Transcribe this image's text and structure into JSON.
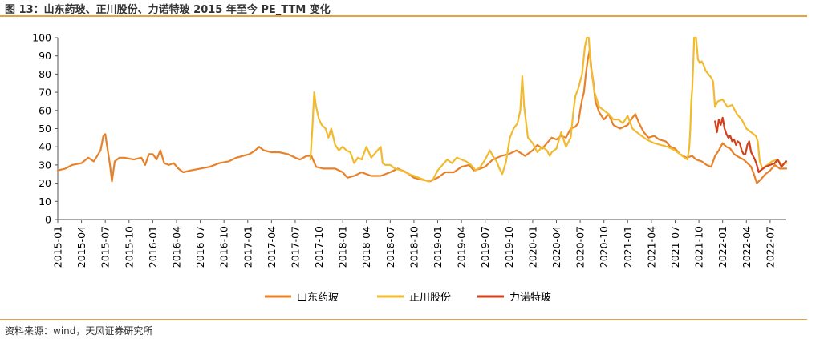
{
  "header": {
    "title": "图 13：山东药玻、正川股份、力诺特玻 2015 年至今 PE_TTM 变化"
  },
  "footer": {
    "source": "资料来源：wind，天风证券研究所"
  },
  "chart_data": {
    "type": "line",
    "title": "山东药玻、正川股份、力诺特玻 2015 年至今 PE_TTM 变化",
    "xlabel": "",
    "ylabel": "",
    "ylim": [
      0,
      100
    ],
    "yticks": [
      "0",
      "10",
      "20",
      "30",
      "40",
      "50",
      "60",
      "70",
      "80",
      "90",
      "100"
    ],
    "xlim": [
      2015.0,
      2022.67
    ],
    "xticks": [
      "2015-01",
      "2015-04",
      "2015-07",
      "2015-10",
      "2016-01",
      "2016-04",
      "2016-07",
      "2016-10",
      "2017-01",
      "2017-04",
      "2017-07",
      "2017-10",
      "2018-01",
      "2018-04",
      "2018-07",
      "2018-10",
      "2019-01",
      "2019-04",
      "2019-07",
      "2019-10",
      "2020-01",
      "2020-04",
      "2020-07",
      "2020-10",
      "2021-01",
      "2021-04",
      "2021-07",
      "2021-10",
      "2022-01",
      "2022-04",
      "2022-07"
    ],
    "legend_position": "bottom-center",
    "series": [
      {
        "name": "山东药玻",
        "color": "#e8822a",
        "points": [
          [
            2015.0,
            27
          ],
          [
            2015.08,
            28
          ],
          [
            2015.15,
            30
          ],
          [
            2015.25,
            31
          ],
          [
            2015.32,
            34
          ],
          [
            2015.38,
            32
          ],
          [
            2015.45,
            38
          ],
          [
            2015.48,
            46
          ],
          [
            2015.5,
            47
          ],
          [
            2015.52,
            40
          ],
          [
            2015.55,
            30
          ],
          [
            2015.57,
            21
          ],
          [
            2015.6,
            32
          ],
          [
            2015.65,
            34
          ],
          [
            2015.7,
            34
          ],
          [
            2015.8,
            33
          ],
          [
            2015.88,
            34
          ],
          [
            2015.92,
            30
          ],
          [
            2015.96,
            36
          ],
          [
            2016.0,
            36
          ],
          [
            2016.04,
            33
          ],
          [
            2016.08,
            38
          ],
          [
            2016.12,
            31
          ],
          [
            2016.17,
            30
          ],
          [
            2016.22,
            31
          ],
          [
            2016.27,
            28
          ],
          [
            2016.32,
            26
          ],
          [
            2016.4,
            27
          ],
          [
            2016.5,
            28
          ],
          [
            2016.6,
            29
          ],
          [
            2016.7,
            31
          ],
          [
            2016.8,
            32
          ],
          [
            2016.88,
            34
          ],
          [
            2016.95,
            35
          ],
          [
            2017.02,
            36
          ],
          [
            2017.08,
            38
          ],
          [
            2017.12,
            40
          ],
          [
            2017.17,
            38
          ],
          [
            2017.25,
            37
          ],
          [
            2017.33,
            37
          ],
          [
            2017.42,
            36
          ],
          [
            2017.5,
            34
          ],
          [
            2017.55,
            33
          ],
          [
            2017.62,
            35
          ],
          [
            2017.67,
            35
          ],
          [
            2017.72,
            29
          ],
          [
            2017.8,
            28
          ],
          [
            2017.92,
            28
          ],
          [
            2018.0,
            26
          ],
          [
            2018.05,
            23
          ],
          [
            2018.12,
            24
          ],
          [
            2018.2,
            26
          ],
          [
            2018.3,
            24
          ],
          [
            2018.4,
            24
          ],
          [
            2018.5,
            26
          ],
          [
            2018.58,
            28
          ],
          [
            2018.67,
            26
          ],
          [
            2018.75,
            23
          ],
          [
            2018.83,
            22
          ],
          [
            2018.92,
            21
          ],
          [
            2019.0,
            23
          ],
          [
            2019.08,
            26
          ],
          [
            2019.17,
            26
          ],
          [
            2019.25,
            29
          ],
          [
            2019.33,
            30
          ],
          [
            2019.38,
            27
          ],
          [
            2019.45,
            28
          ],
          [
            2019.5,
            29
          ],
          [
            2019.58,
            33
          ],
          [
            2019.67,
            35
          ],
          [
            2019.75,
            36
          ],
          [
            2019.83,
            38
          ],
          [
            2019.92,
            35
          ],
          [
            2020.0,
            38
          ],
          [
            2020.05,
            41
          ],
          [
            2020.1,
            39
          ],
          [
            2020.15,
            42
          ],
          [
            2020.2,
            45
          ],
          [
            2020.25,
            44
          ],
          [
            2020.3,
            46
          ],
          [
            2020.35,
            45
          ],
          [
            2020.4,
            50
          ],
          [
            2020.45,
            51
          ],
          [
            2020.48,
            53
          ],
          [
            2020.5,
            60
          ],
          [
            2020.52,
            66
          ],
          [
            2020.54,
            70
          ],
          [
            2020.56,
            80
          ],
          [
            2020.58,
            88
          ],
          [
            2020.6,
            93
          ],
          [
            2020.62,
            82
          ],
          [
            2020.64,
            75
          ],
          [
            2020.66,
            65
          ],
          [
            2020.7,
            59
          ],
          [
            2020.75,
            55
          ],
          [
            2020.8,
            58
          ],
          [
            2020.85,
            52
          ],
          [
            2020.92,
            50
          ],
          [
            2021.0,
            52
          ],
          [
            2021.05,
            56
          ],
          [
            2021.08,
            58
          ],
          [
            2021.12,
            53
          ],
          [
            2021.17,
            48
          ],
          [
            2021.22,
            45
          ],
          [
            2021.28,
            46
          ],
          [
            2021.33,
            44
          ],
          [
            2021.4,
            43
          ],
          [
            2021.45,
            40
          ],
          [
            2021.5,
            39
          ],
          [
            2021.55,
            36
          ],
          [
            2021.62,
            34
          ],
          [
            2021.68,
            35
          ],
          [
            2021.72,
            33
          ],
          [
            2021.78,
            32
          ],
          [
            2021.83,
            30
          ],
          [
            2021.88,
            29
          ],
          [
            2021.92,
            35
          ],
          [
            2021.96,
            38
          ],
          [
            2022.0,
            42
          ],
          [
            2022.04,
            40
          ],
          [
            2022.08,
            39
          ],
          [
            2022.12,
            36
          ],
          [
            2022.18,
            34
          ],
          [
            2022.22,
            33
          ],
          [
            2022.26,
            31
          ],
          [
            2022.3,
            29
          ],
          [
            2022.33,
            25
          ],
          [
            2022.36,
            20
          ],
          [
            2022.4,
            22
          ],
          [
            2022.45,
            25
          ],
          [
            2022.5,
            27
          ],
          [
            2022.55,
            30
          ],
          [
            2022.6,
            28
          ],
          [
            2022.67,
            28
          ]
        ]
      },
      {
        "name": "正川股份",
        "color": "#f2bb2f",
        "points": [
          [
            2017.66,
            33
          ],
          [
            2017.68,
            50
          ],
          [
            2017.7,
            70
          ],
          [
            2017.72,
            62
          ],
          [
            2017.75,
            55
          ],
          [
            2017.78,
            52
          ],
          [
            2017.82,
            50
          ],
          [
            2017.85,
            45
          ],
          [
            2017.88,
            50
          ],
          [
            2017.92,
            41
          ],
          [
            2017.96,
            38
          ],
          [
            2018.0,
            40
          ],
          [
            2018.04,
            38
          ],
          [
            2018.08,
            37
          ],
          [
            2018.12,
            31
          ],
          [
            2018.16,
            34
          ],
          [
            2018.2,
            33
          ],
          [
            2018.25,
            40
          ],
          [
            2018.3,
            34
          ],
          [
            2018.35,
            37
          ],
          [
            2018.4,
            40
          ],
          [
            2018.42,
            31
          ],
          [
            2018.45,
            30
          ],
          [
            2018.5,
            30
          ],
          [
            2018.55,
            28
          ],
          [
            2018.62,
            27
          ],
          [
            2018.7,
            25
          ],
          [
            2018.75,
            24
          ],
          [
            2018.8,
            23
          ],
          [
            2018.85,
            22
          ],
          [
            2018.9,
            21
          ],
          [
            2018.95,
            22
          ],
          [
            2019.0,
            27
          ],
          [
            2019.05,
            30
          ],
          [
            2019.1,
            33
          ],
          [
            2019.15,
            31
          ],
          [
            2019.2,
            34
          ],
          [
            2019.25,
            33
          ],
          [
            2019.3,
            32
          ],
          [
            2019.35,
            30
          ],
          [
            2019.4,
            27
          ],
          [
            2019.45,
            29
          ],
          [
            2019.5,
            33
          ],
          [
            2019.55,
            38
          ],
          [
            2019.58,
            35
          ],
          [
            2019.62,
            32
          ],
          [
            2019.65,
            28
          ],
          [
            2019.68,
            25
          ],
          [
            2019.72,
            32
          ],
          [
            2019.76,
            45
          ],
          [
            2019.8,
            50
          ],
          [
            2019.84,
            53
          ],
          [
            2019.87,
            60
          ],
          [
            2019.89,
            79
          ],
          [
            2019.91,
            62
          ],
          [
            2019.95,
            45
          ],
          [
            2020.0,
            42
          ],
          [
            2020.05,
            37
          ],
          [
            2020.1,
            40
          ],
          [
            2020.15,
            38
          ],
          [
            2020.18,
            35
          ],
          [
            2020.2,
            37
          ],
          [
            2020.25,
            39
          ],
          [
            2020.3,
            48
          ],
          [
            2020.35,
            40
          ],
          [
            2020.4,
            45
          ],
          [
            2020.43,
            60
          ],
          [
            2020.45,
            68
          ],
          [
            2020.48,
            72
          ],
          [
            2020.52,
            80
          ],
          [
            2020.55,
            95
          ],
          [
            2020.57,
            100
          ],
          [
            2020.59,
            100
          ],
          [
            2020.61,
            85
          ],
          [
            2020.65,
            70
          ],
          [
            2020.7,
            62
          ],
          [
            2020.75,
            60
          ],
          [
            2020.8,
            58
          ],
          [
            2020.85,
            55
          ],
          [
            2020.9,
            55
          ],
          [
            2020.95,
            53
          ],
          [
            2021.0,
            57
          ],
          [
            2021.05,
            50
          ],
          [
            2021.12,
            47
          ],
          [
            2021.2,
            44
          ],
          [
            2021.28,
            42
          ],
          [
            2021.35,
            41
          ],
          [
            2021.42,
            40
          ],
          [
            2021.5,
            38
          ],
          [
            2021.55,
            36
          ],
          [
            2021.6,
            34
          ],
          [
            2021.63,
            33
          ],
          [
            2021.65,
            40
          ],
          [
            2021.66,
            50
          ],
          [
            2021.67,
            65
          ],
          [
            2021.68,
            72
          ],
          [
            2021.69,
            85
          ],
          [
            2021.7,
            100
          ],
          [
            2021.72,
            100
          ],
          [
            2021.74,
            88
          ],
          [
            2021.76,
            86
          ],
          [
            2021.78,
            87
          ],
          [
            2021.8,
            85
          ],
          [
            2021.82,
            82
          ],
          [
            2021.85,
            80
          ],
          [
            2021.88,
            78
          ],
          [
            2021.9,
            76
          ],
          [
            2021.92,
            62
          ],
          [
            2021.95,
            65
          ],
          [
            2022.0,
            66
          ],
          [
            2022.05,
            62
          ],
          [
            2022.1,
            63
          ],
          [
            2022.15,
            58
          ],
          [
            2022.2,
            55
          ],
          [
            2022.25,
            50
          ],
          [
            2022.3,
            48
          ],
          [
            2022.35,
            46
          ],
          [
            2022.37,
            43
          ],
          [
            2022.39,
            32
          ],
          [
            2022.42,
            28
          ],
          [
            2022.47,
            30
          ],
          [
            2022.52,
            32
          ],
          [
            2022.58,
            33
          ],
          [
            2022.62,
            30
          ],
          [
            2022.67,
            31
          ]
        ]
      },
      {
        "name": "力诺特玻",
        "color": "#d2411e",
        "points": [
          [
            2021.92,
            54
          ],
          [
            2021.94,
            48
          ],
          [
            2021.96,
            55
          ],
          [
            2021.98,
            52
          ],
          [
            2022.0,
            56
          ],
          [
            2022.02,
            50
          ],
          [
            2022.04,
            47
          ],
          [
            2022.06,
            45
          ],
          [
            2022.08,
            46
          ],
          [
            2022.1,
            43
          ],
          [
            2022.12,
            44
          ],
          [
            2022.14,
            41
          ],
          [
            2022.16,
            43
          ],
          [
            2022.18,
            42
          ],
          [
            2022.2,
            38
          ],
          [
            2022.22,
            36
          ],
          [
            2022.24,
            36
          ],
          [
            2022.26,
            41
          ],
          [
            2022.28,
            43
          ],
          [
            2022.3,
            37
          ],
          [
            2022.32,
            35
          ],
          [
            2022.34,
            33
          ],
          [
            2022.36,
            30
          ],
          [
            2022.38,
            26
          ],
          [
            2022.4,
            27
          ],
          [
            2022.45,
            29
          ],
          [
            2022.5,
            30
          ],
          [
            2022.55,
            31
          ],
          [
            2022.58,
            33
          ],
          [
            2022.62,
            29
          ],
          [
            2022.65,
            31
          ],
          [
            2022.67,
            32
          ]
        ]
      }
    ]
  }
}
